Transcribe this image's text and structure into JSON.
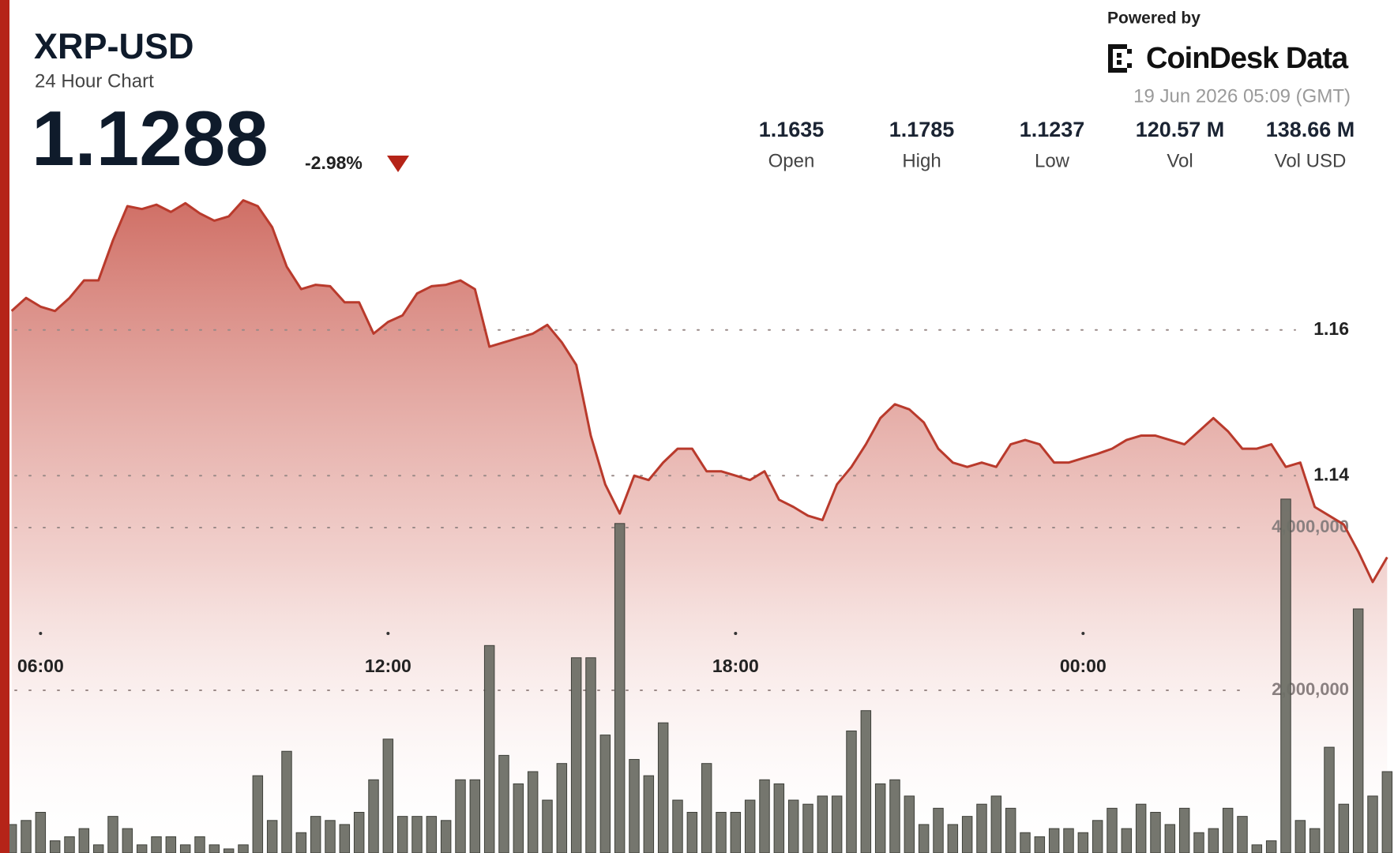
{
  "header": {
    "price": "1.1288",
    "change": "-2.98%",
    "stats": [
      {
        "value": "1.1635",
        "label": "Open"
      },
      {
        "value": "1.1785",
        "label": "High"
      },
      {
        "value": "1.1237",
        "label": "Low"
      },
      {
        "value": "120.57 M",
        "label": "Vol"
      },
      {
        "value": "138.66 M",
        "label": "Vol USD"
      }
    ],
    "powered_by": "Powered by",
    "brand": "CoinDesk Data",
    "timestamp": "19 Jun 2026 05:09 (GMT)"
  },
  "chart_data": {
    "type": "line",
    "title": "XRP-USD",
    "subtitle": "24 Hour Chart",
    "x": [
      5.5,
      5.75,
      6,
      6.25,
      6.5,
      6.75,
      7,
      7.25,
      7.5,
      7.75,
      8,
      8.25,
      8.5,
      8.75,
      9,
      9.25,
      9.5,
      9.75,
      10,
      10.25,
      10.5,
      10.75,
      11,
      11.25,
      11.5,
      11.75,
      12,
      12.25,
      12.5,
      12.75,
      13,
      13.25,
      13.5,
      13.75,
      14,
      14.25,
      14.5,
      14.75,
      15,
      15.25,
      15.5,
      15.75,
      16,
      16.25,
      16.5,
      16.75,
      17,
      17.25,
      17.5,
      17.75,
      18,
      18.25,
      18.5,
      18.75,
      19,
      19.25,
      19.5,
      19.75,
      20,
      20.25,
      20.5,
      20.75,
      21,
      21.25,
      21.5,
      21.75,
      22,
      22.25,
      22.5,
      22.75,
      23,
      23.25,
      23.5,
      23.75,
      24,
      24.25,
      24.5,
      24.75,
      25,
      25.25,
      25.5,
      25.75,
      26,
      26.25,
      26.5,
      26.75,
      27,
      27.25,
      27.5,
      27.75,
      28,
      28.25,
      28.5,
      28.75,
      29,
      29.25
    ],
    "series": [
      {
        "name": "Price",
        "color": "#b93a2c",
        "values": [
          1.1626,
          1.1644,
          1.1632,
          1.1626,
          1.1644,
          1.1668,
          1.1668,
          1.1723,
          1.177,
          1.1766,
          1.1772,
          1.1762,
          1.1774,
          1.176,
          1.175,
          1.1756,
          1.1778,
          1.177,
          1.1741,
          1.1687,
          1.1656,
          1.1662,
          1.166,
          1.1638,
          1.1638,
          1.1595,
          1.1611,
          1.162,
          1.165,
          1.166,
          1.1662,
          1.1668,
          1.1656,
          1.1577,
          1.1583,
          1.1589,
          1.1595,
          1.1607,
          1.1583,
          1.1552,
          1.1455,
          1.1388,
          1.1348,
          1.14,
          1.1394,
          1.1418,
          1.1437,
          1.1437,
          1.1406,
          1.1406,
          1.14,
          1.1394,
          1.1406,
          1.1367,
          1.1357,
          1.1345,
          1.1339,
          1.1388,
          1.1412,
          1.1443,
          1.1479,
          1.1498,
          1.1491,
          1.1473,
          1.1437,
          1.1418,
          1.1412,
          1.1418,
          1.1412,
          1.1443,
          1.1449,
          1.1443,
          1.1418,
          1.1418,
          1.1424,
          1.143,
          1.1437,
          1.1449,
          1.1455,
          1.1455,
          1.1449,
          1.1443,
          1.1461,
          1.1479,
          1.1461,
          1.1437,
          1.1437,
          1.1443,
          1.1412,
          1.1418,
          1.1357,
          1.1345,
          1.1333,
          1.1296,
          1.1254,
          1.1288
        ]
      },
      {
        "name": "Volume",
        "color": "#6e6f66",
        "axis": "y2",
        "values": [
          350000,
          400000,
          500000,
          150000,
          200000,
          300000,
          100000,
          450000,
          300000,
          100000,
          200000,
          200000,
          100000,
          200000,
          100000,
          50000,
          100000,
          950000,
          400000,
          1250000,
          250000,
          450000,
          400000,
          350000,
          500000,
          900000,
          1400000,
          450000,
          450000,
          450000,
          400000,
          900000,
          900000,
          2550000,
          1200000,
          850000,
          1000000,
          650000,
          1100000,
          2400000,
          2400000,
          1450000,
          4050000,
          1150000,
          950000,
          1600000,
          650000,
          500000,
          1100000,
          500000,
          500000,
          650000,
          900000,
          850000,
          650000,
          600000,
          700000,
          700000,
          1500000,
          1750000,
          850000,
          900000,
          700000,
          350000,
          550000,
          350000,
          450000,
          600000,
          700000,
          550000,
          250000,
          200000,
          300000,
          300000,
          250000,
          400000,
          550000,
          300000,
          600000,
          500000,
          350000,
          550000,
          250000,
          300000,
          550000,
          450000,
          100000,
          150000,
          4350000,
          400000,
          300000,
          1300000,
          600000,
          3000000,
          700000,
          1000000
        ]
      }
    ],
    "xlim": [
      5.45,
      29.3
    ],
    "xticks": [
      {
        "value": 6,
        "label": "06:00"
      },
      {
        "value": 12,
        "label": "12:00"
      },
      {
        "value": 18,
        "label": "18:00"
      },
      {
        "value": 24,
        "label": "00:00"
      }
    ],
    "ylim": [
      1.0882,
      1.1809
    ],
    "yticks": [
      1.14,
      1.16
    ],
    "y2lim": [
      0,
      8300000
    ],
    "y2ticks": [
      {
        "value": 2000000,
        "label": "2,000,000"
      },
      {
        "value": 4000000,
        "label": "4,000,000"
      }
    ],
    "grid": true
  }
}
